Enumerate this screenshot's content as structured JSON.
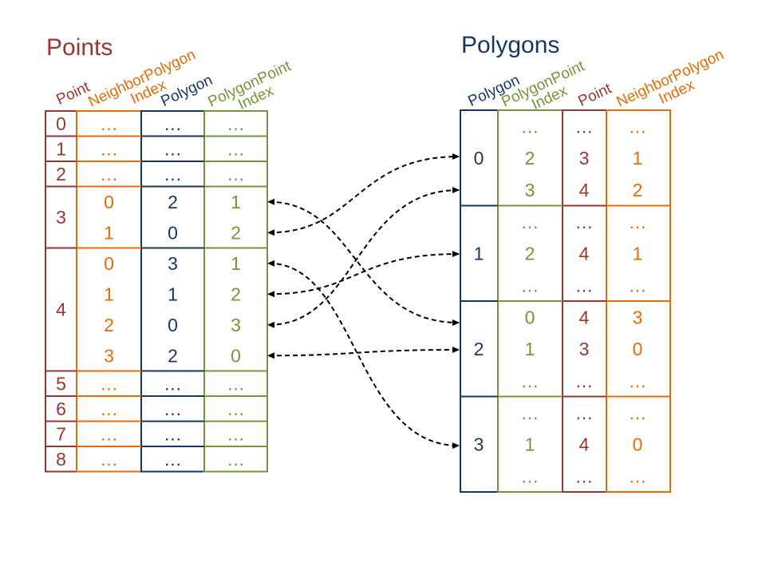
{
  "colors": {
    "point": "#953735",
    "neighbor": "#E46C0A",
    "polygon": "#17375E",
    "polygonpoint": "#77933C",
    "arrow": "#000000"
  },
  "points_table": {
    "title": "Points",
    "headers": {
      "point": "Point",
      "neighbor_line1": "NeighborPolygon",
      "neighbor_line2": "Index",
      "polygon": "Polygon",
      "polygonpoint_line1": "PolygonPoint",
      "polygonpoint_line2": "Index"
    },
    "rows": [
      {
        "point": "0",
        "entries": [
          {
            "neighbor": "…",
            "polygon": "…",
            "polygonpoint": "…"
          }
        ]
      },
      {
        "point": "1",
        "entries": [
          {
            "neighbor": "…",
            "polygon": "…",
            "polygonpoint": "…"
          }
        ]
      },
      {
        "point": "2",
        "entries": [
          {
            "neighbor": "…",
            "polygon": "…",
            "polygonpoint": "…"
          }
        ]
      },
      {
        "point": "3",
        "entries": [
          {
            "neighbor": "0",
            "polygon": "2",
            "polygonpoint": "1"
          },
          {
            "neighbor": "1",
            "polygon": "0",
            "polygonpoint": "2"
          }
        ]
      },
      {
        "point": "4",
        "entries": [
          {
            "neighbor": "0",
            "polygon": "3",
            "polygonpoint": "1"
          },
          {
            "neighbor": "1",
            "polygon": "1",
            "polygonpoint": "2"
          },
          {
            "neighbor": "2",
            "polygon": "0",
            "polygonpoint": "3"
          },
          {
            "neighbor": "3",
            "polygon": "2",
            "polygonpoint": "0"
          }
        ]
      },
      {
        "point": "5",
        "entries": [
          {
            "neighbor": "…",
            "polygon": "…",
            "polygonpoint": "…"
          }
        ]
      },
      {
        "point": "6",
        "entries": [
          {
            "neighbor": "…",
            "polygon": "…",
            "polygonpoint": "…"
          }
        ]
      },
      {
        "point": "7",
        "entries": [
          {
            "neighbor": "…",
            "polygon": "…",
            "polygonpoint": "…"
          }
        ]
      },
      {
        "point": "8",
        "entries": [
          {
            "neighbor": "…",
            "polygon": "…",
            "polygonpoint": "…"
          }
        ]
      }
    ]
  },
  "polygons_table": {
    "title": "Polygons",
    "headers": {
      "polygon": "Polygon",
      "polygonpoint_line1": "PolygonPoint",
      "polygonpoint_line2": "Index",
      "point": "Point",
      "neighbor_line1": "NeighborPolygon",
      "neighbor_line2": "Index"
    },
    "rows": [
      {
        "polygon": "0",
        "entries": [
          {
            "polygonpoint": "…",
            "point": "…",
            "neighbor": "…"
          },
          {
            "polygonpoint": "2",
            "point": "3",
            "neighbor": "1"
          },
          {
            "polygonpoint": "3",
            "point": "4",
            "neighbor": "2"
          }
        ]
      },
      {
        "polygon": "1",
        "entries": [
          {
            "polygonpoint": "…",
            "point": "…",
            "neighbor": "…"
          },
          {
            "polygonpoint": "2",
            "point": "4",
            "neighbor": "1"
          },
          {
            "polygonpoint": "…",
            "point": "…",
            "neighbor": "…"
          }
        ]
      },
      {
        "polygon": "2",
        "entries": [
          {
            "polygonpoint": "0",
            "point": "4",
            "neighbor": "3"
          },
          {
            "polygonpoint": "1",
            "point": "3",
            "neighbor": "0"
          },
          {
            "polygonpoint": "…",
            "point": "…",
            "neighbor": "…"
          }
        ]
      },
      {
        "polygon": "3",
        "entries": [
          {
            "polygonpoint": "…",
            "point": "…",
            "neighbor": "…"
          },
          {
            "polygonpoint": "1",
            "point": "4",
            "neighbor": "0"
          },
          {
            "polygonpoint": "…",
            "point": "…",
            "neighbor": "…"
          }
        ]
      }
    ]
  },
  "links": [
    {
      "from_point": "3",
      "from_entry": 0,
      "to_polygon": "2"
    },
    {
      "from_point": "3",
      "from_entry": 1,
      "to_polygon": "0"
    },
    {
      "from_point": "4",
      "from_entry": 0,
      "to_polygon": "3"
    },
    {
      "from_point": "4",
      "from_entry": 1,
      "to_polygon": "1"
    },
    {
      "from_point": "4",
      "from_entry": 2,
      "to_polygon": "0"
    },
    {
      "from_point": "4",
      "from_entry": 3,
      "to_polygon": "2"
    }
  ]
}
